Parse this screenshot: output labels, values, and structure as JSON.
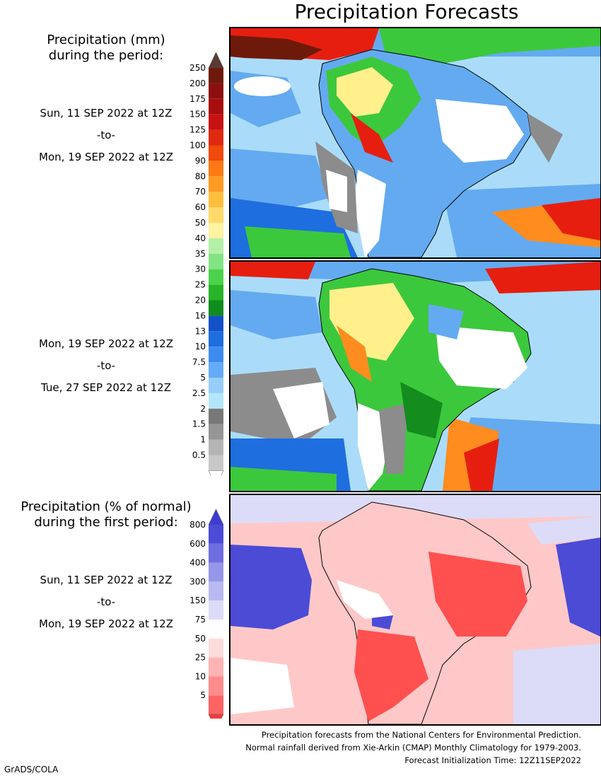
{
  "title": "Precipitation Forecasts",
  "mm_header": {
    "line1": "Precipitation (mm)",
    "line2": "during the period:"
  },
  "period1": {
    "start": "Sun, 11 SEP 2022 at 12Z",
    "to": "-to-",
    "end": "Mon, 19 SEP 2022 at 12Z"
  },
  "period2": {
    "start": "Mon, 19 SEP 2022 at 12Z",
    "to": "-to-",
    "end": "Tue, 27 SEP 2022 at 12Z"
  },
  "pct_header": {
    "line1": "Precipitation (% of normal)",
    "line2": "during the first period:"
  },
  "period3": {
    "start": "Sun, 11 SEP 2022 at 12Z",
    "to": "-to-",
    "end": "Mon, 19 SEP 2022 at 12Z"
  },
  "mm_scale": {
    "labels": [
      "250",
      "200",
      "175",
      "150",
      "125",
      "100",
      "90",
      "80",
      "70",
      "60",
      "50",
      "40",
      "35",
      "30",
      "25",
      "20",
      "16",
      "13",
      "10",
      "7.5",
      "5",
      "2.5",
      "2",
      "1.5",
      "1",
      "0.5"
    ],
    "colors": [
      "#6e1a0a",
      "#8c0f0f",
      "#a80d0d",
      "#c81212",
      "#e02a10",
      "#f04a0a",
      "#ff7a14",
      "#ff9a22",
      "#ffbe3c",
      "#ffd96a",
      "#fff2a0",
      "#b4f0a8",
      "#82e482",
      "#4cd24c",
      "#28b428",
      "#0f8c1e",
      "#1450c8",
      "#1e6ee0",
      "#3c8cf0",
      "#64aaf8",
      "#96cdfa",
      "#b4e6fa",
      "#787878",
      "#969696",
      "#b4b4b4",
      "#c8c8c8"
    ],
    "top_arrow_color": "#5a3a32",
    "bottom_arrow_color": "#ffffff"
  },
  "pct_scale": {
    "labels": [
      "800",
      "600",
      "400",
      "300",
      "150",
      "75",
      "50",
      "25",
      "10",
      "5"
    ],
    "colors": [
      "#4b4bd6",
      "#6e6ee0",
      "#9696ea",
      "#b9b9f2",
      "#dcdcf8",
      "#ffffff",
      "#ffdcdc",
      "#ffb4b4",
      "#ff8c8c",
      "#ff6464"
    ],
    "top_arrow_color": "#3c3cd2",
    "bottom_arrow_color": "#f03c3c"
  },
  "footer": {
    "line1": "Precipitation forecasts from the National Centers for Environmental Prediction.",
    "line2": "Normal rainfall derived from Xie-Arkin (CMAP) Monthly Climatology for 1979-2003.",
    "line3": "Forecast Initialization Time: 12Z11SEP2022"
  },
  "credit": "GrADS/COLA",
  "map_colors": {
    "ocean_light": "#aadcfa",
    "ocean_blue": "#64aaf0",
    "ocean_dark": "#1e6ee0",
    "wet_green": "#3cc83c",
    "dark_green": "#148c1e",
    "yellow": "#fff08c",
    "orange": "#ff8c1e",
    "red": "#e61e10",
    "dry_gray": "#8c8c8c",
    "dry_white": "#ffffff",
    "pct_red": "#ff5050",
    "pct_pink": "#ffc8c8",
    "pct_blue": "#4b4bd6",
    "pct_lav": "#dcdcf8"
  }
}
